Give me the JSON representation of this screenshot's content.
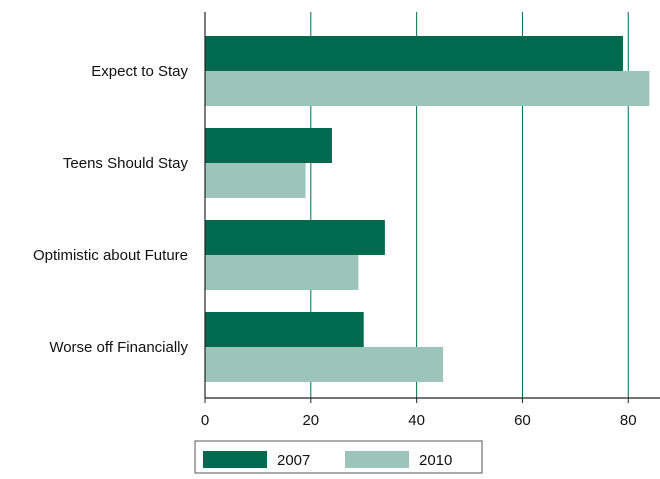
{
  "chart_data": {
    "type": "bar",
    "orientation": "horizontal",
    "categories": [
      "Expect to Stay",
      "Teens Should Stay",
      "Optimistic about Future",
      "Worse off Financially"
    ],
    "series": [
      {
        "name": "2007",
        "values": [
          79,
          24,
          34,
          30
        ],
        "color": "#006a4e"
      },
      {
        "name": "2010",
        "values": [
          84,
          19,
          29,
          45
        ],
        "color": "#9cc4b8"
      }
    ],
    "xticks": [
      0,
      20,
      40,
      60,
      80
    ],
    "xlim": [
      0,
      86
    ],
    "grid": true,
    "legend_position": "bottom"
  }
}
